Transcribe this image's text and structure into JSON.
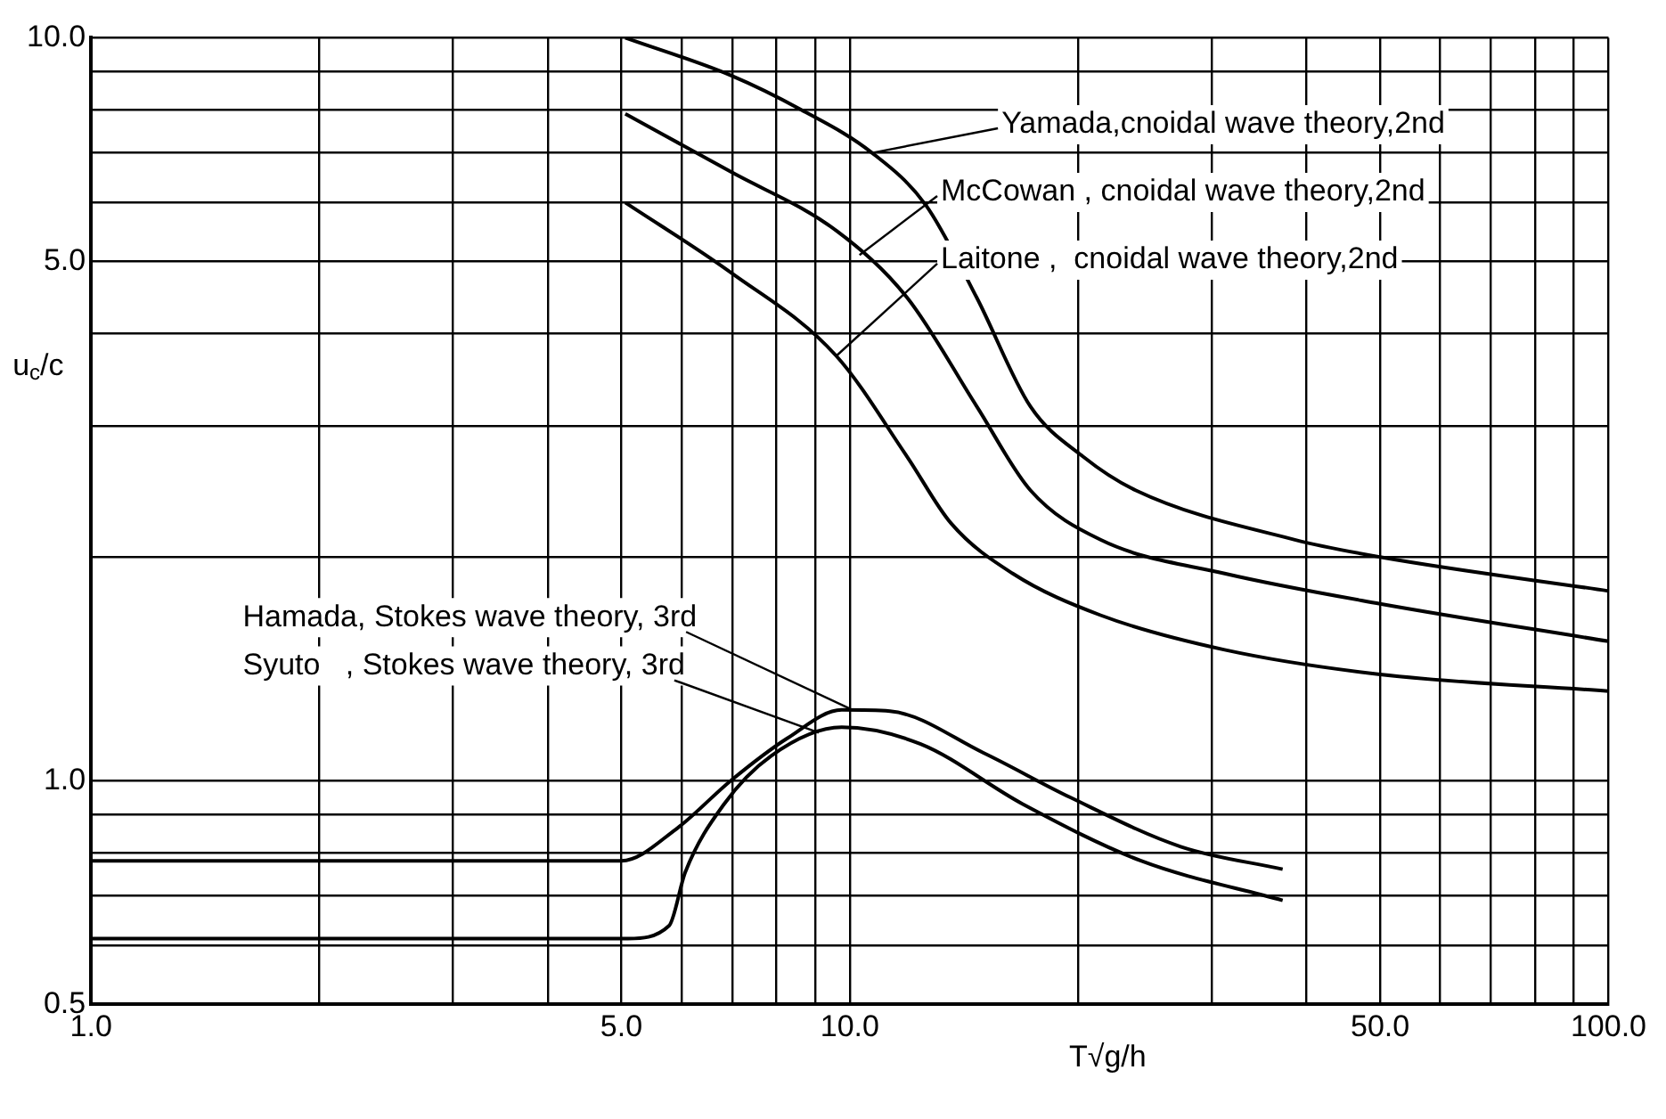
{
  "chart_data": {
    "type": "line",
    "xlabel": "T√g/h",
    "ylabel": "u$_{c}$/c",
    "log": "xy",
    "grid": true,
    "legend": false,
    "marker": "none",
    "line_style": "solid",
    "xlim": [
      1,
      100
    ],
    "ylim": [
      0.5,
      10
    ],
    "xticks": [
      {
        "value": 1,
        "label": "1.0"
      },
      {
        "value": 2,
        "label": null
      },
      {
        "value": 3,
        "label": null
      },
      {
        "value": 4,
        "label": null
      },
      {
        "value": 5,
        "label": "5.0"
      },
      {
        "value": 6,
        "label": null
      },
      {
        "value": 7,
        "label": null
      },
      {
        "value": 8,
        "label": null
      },
      {
        "value": 9,
        "label": null
      },
      {
        "value": 10,
        "label": "10.0"
      },
      {
        "value": 20,
        "label": null
      },
      {
        "value": 30,
        "label": null
      },
      {
        "value": 40,
        "label": null
      },
      {
        "value": 50,
        "label": "50.0"
      },
      {
        "value": 60,
        "label": null
      },
      {
        "value": 70,
        "label": null
      },
      {
        "value": 80,
        "label": null
      },
      {
        "value": 90,
        "label": null
      },
      {
        "value": 100,
        "label": "100.0"
      }
    ],
    "yticks": [
      {
        "value": 0.5,
        "label": "0.5"
      },
      {
        "value": 0.6,
        "label": null
      },
      {
        "value": 0.7,
        "label": null
      },
      {
        "value": 0.8,
        "label": null
      },
      {
        "value": 0.9,
        "label": null
      },
      {
        "value": 1,
        "label": "1.0"
      },
      {
        "value": 2,
        "label": null
      },
      {
        "value": 3,
        "label": null
      },
      {
        "value": 4,
        "label": null
      },
      {
        "value": 5,
        "label": "5.0"
      },
      {
        "value": 6,
        "label": null
      },
      {
        "value": 7,
        "label": null
      },
      {
        "value": 8,
        "label": null
      },
      {
        "value": 9,
        "label": null
      },
      {
        "value": 10,
        "label": "10.0"
      }
    ],
    "series": [
      {
        "color": "#000000",
        "x": [
          5.06,
          6.97,
          8.63,
          10.7,
          12.6,
          14.7,
          17.3,
          20.3,
          23.8,
          38.6,
          50,
          100
        ],
        "values": [
          10,
          8.9,
          8.0,
          7.0,
          5.95,
          4.47,
          3.19,
          2.73,
          2.46,
          2.11,
          2.0,
          1.8
        ]
      },
      {
        "color": "#000000",
        "x": [
          5.06,
          6.97,
          9.6,
          11.9,
          14.7,
          17.3,
          21.4,
          31.2,
          50,
          100
        ],
        "values": [
          7.9,
          6.6,
          5.5,
          4.47,
          3.19,
          2.46,
          2.11,
          1.9,
          1.73,
          1.54
        ]
      },
      {
        "color": "#000000",
        "x": [
          5.06,
          6.97,
          9.6,
          11.9,
          13.6,
          16.4,
          21.4,
          31.2,
          50,
          100
        ],
        "values": [
          6.0,
          4.83,
          3.73,
          2.73,
          2.22,
          1.9,
          1.67,
          1.5,
          1.39,
          1.32
        ]
      },
      {
        "color": "#000000",
        "x": [
          1,
          5.0,
          5.9,
          6.97,
          8.27,
          9.76,
          11.3,
          15.0,
          19.5,
          27.3,
          37.2
        ],
        "values": [
          0.78,
          0.78,
          0.86,
          1.0,
          1.14,
          1.245,
          1.24,
          1.09,
          0.95,
          0.815,
          0.76
        ]
      },
      {
        "color": "#000000",
        "x": [
          1,
          5.1,
          5.78,
          6.07,
          6.83,
          7.88,
          9.76,
          12.4,
          16.9,
          24.2,
          37.2
        ],
        "values": [
          0.613,
          0.613,
          0.638,
          0.753,
          0.93,
          1.08,
          1.18,
          1.12,
          0.93,
          0.78,
          0.69
        ]
      }
    ],
    "annotations": [
      {
        "text": "Yamada,cnoidal wave theory,2nd",
        "x": 10.7,
        "y": 7.0
      },
      {
        "text": "McCowan , cnoidal wave theory,2nd",
        "x": 10.3,
        "y": 5.1
      },
      {
        "text": "Laitone ,  cnoidal wave theory,2nd",
        "x": 9.6,
        "y": 3.73
      },
      {
        "text": "Hamada, Stokes wave theory, 3rd",
        "x": 10,
        "y": 1.25
      },
      {
        "text": "Syuto   , Stokes wave theory, 3rd",
        "x": 9.1,
        "y": 1.16
      }
    ]
  }
}
